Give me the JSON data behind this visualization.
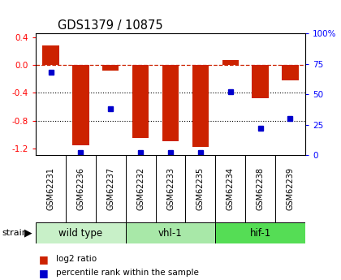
{
  "title": "GDS1379 / 10875",
  "samples": [
    "GSM62231",
    "GSM62236",
    "GSM62237",
    "GSM62232",
    "GSM62233",
    "GSM62235",
    "GSM62234",
    "GSM62238",
    "GSM62239"
  ],
  "log2_ratio": [
    0.28,
    -1.15,
    -0.08,
    -1.05,
    -1.1,
    -1.18,
    0.07,
    -0.48,
    -0.22
  ],
  "pct_rank": [
    68,
    2,
    38,
    2,
    2,
    2,
    52,
    22,
    30
  ],
  "groups": [
    {
      "label": "wild type",
      "start": 0,
      "end": 3,
      "color": "#c8f0c8"
    },
    {
      "label": "vhl-1",
      "start": 3,
      "end": 6,
      "color": "#a8e8a8"
    },
    {
      "label": "hif-1",
      "start": 6,
      "end": 9,
      "color": "#55dd55"
    }
  ],
  "ylim_left": [
    -1.3,
    0.45
  ],
  "ylim_right": [
    0,
    100
  ],
  "bar_color": "#cc2200",
  "dot_color": "#0000cc",
  "hline_color": "#cc2200",
  "grid_color": "#000000",
  "bg_color": "#ffffff",
  "sample_box_color": "#c8c8c8",
  "left_yticks": [
    0.4,
    0.0,
    -0.4,
    -0.8,
    -1.2
  ],
  "right_yticks": [
    100,
    75,
    50,
    25,
    0
  ],
  "right_labels": [
    "100%",
    "75",
    "50",
    "25",
    "0"
  ]
}
